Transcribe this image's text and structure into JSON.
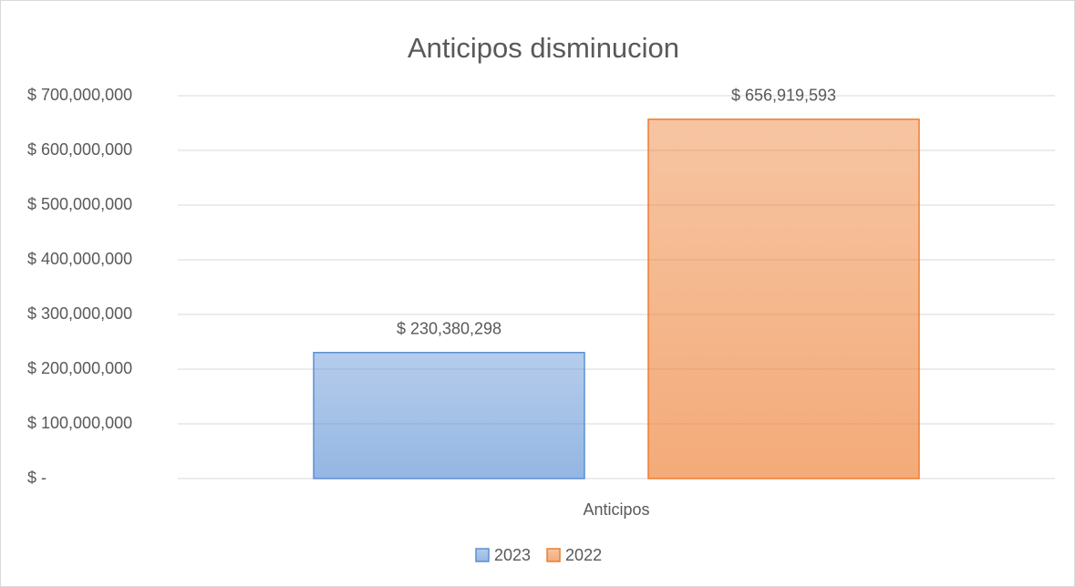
{
  "chart_data": {
    "type": "bar",
    "title": "Anticipos disminucion",
    "categories": [
      "Anticipos"
    ],
    "series": [
      {
        "name": "2023",
        "color": "#5b8fd4",
        "values": [
          230380298
        ],
        "value_labels": [
          "$ 230,380,298"
        ]
      },
      {
        "name": "2022",
        "color": "#ed7d31",
        "values": [
          656919593
        ],
        "value_labels": [
          "$ 656,919,593"
        ]
      }
    ],
    "ylim": [
      0,
      700000000
    ],
    "yticks": [
      {
        "value": 0,
        "label": "$ -"
      },
      {
        "value": 100000000,
        "label": "$ 100,000,000"
      },
      {
        "value": 200000000,
        "label": "$ 200,000,000"
      },
      {
        "value": 300000000,
        "label": "$ 300,000,000"
      },
      {
        "value": 400000000,
        "label": "$ 400,000,000"
      },
      {
        "value": 500000000,
        "label": "$ 500,000,000"
      },
      {
        "value": 600000000,
        "label": "$ 600,000,000"
      },
      {
        "value": 700000000,
        "label": "$ 700,000,000"
      }
    ],
    "grid": true,
    "legend": "bottom"
  }
}
